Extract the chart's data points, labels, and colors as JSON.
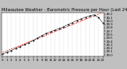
{
  "title": "Milwaukee Weather - Barometric Pressure per Hour (Last 24 Hours)",
  "hours": [
    0,
    1,
    2,
    3,
    4,
    5,
    6,
    7,
    8,
    9,
    10,
    11,
    12,
    13,
    14,
    15,
    16,
    17,
    18,
    19,
    20,
    21,
    22,
    23
  ],
  "pressure": [
    29.02,
    29.08,
    29.13,
    29.19,
    29.24,
    29.3,
    29.36,
    29.42,
    29.5,
    29.57,
    29.63,
    29.68,
    29.73,
    29.78,
    29.83,
    29.89,
    29.95,
    30.01,
    30.06,
    30.11,
    30.15,
    30.18,
    30.1,
    29.94
  ],
  "line_color": "#000000",
  "trend_color": "#ff0000",
  "bg_color": "#c0c0c0",
  "plot_bg_color": "#ffffff",
  "grid_color": "#888888",
  "ylim_min": 28.95,
  "ylim_max": 30.25,
  "yticks": [
    29.0,
    29.1,
    29.2,
    29.3,
    29.4,
    29.5,
    29.6,
    29.7,
    29.8,
    29.9,
    30.0,
    30.1,
    30.2
  ],
  "title_fontsize": 3.8,
  "tick_fontsize": 2.8
}
